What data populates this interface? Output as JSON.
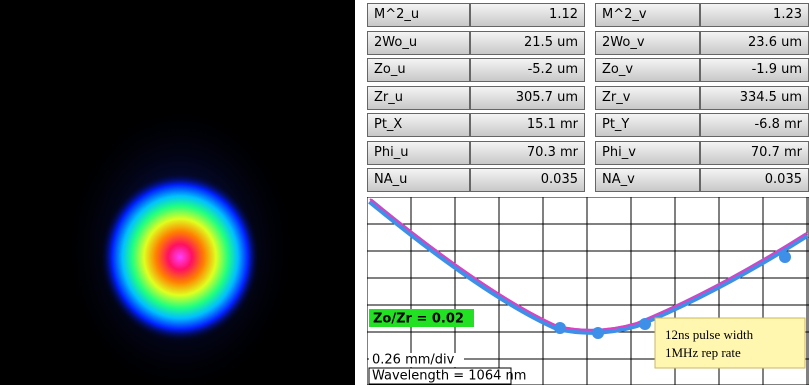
{
  "table": {
    "rows": [
      [
        "M^2_u",
        "1.12",
        "M^2_v",
        "1.23"
      ],
      [
        "2Wo_u",
        "21.5 um",
        "2Wo_v",
        "23.6 um"
      ],
      [
        "Zo_u",
        "-5.2 um",
        "Zo_v",
        "-1.9 um"
      ],
      [
        "Zr_u",
        "305.7 um",
        "Zr_v",
        "334.5 um"
      ],
      [
        "Pt_X",
        "15.1 mr",
        "Pt_Y",
        "-6.8 mr"
      ],
      [
        "Phi_u",
        "70.3 mr",
        "Phi_v",
        "70.7 mr"
      ],
      [
        "NA_u",
        "0.035",
        "NA_v",
        "0.035"
      ]
    ]
  },
  "plot": {
    "ratio_label": "Zo/Zr = 0.02",
    "scale_label": "0.26 mm/div",
    "wavelength_label": "Wavelength = 1064 nm"
  },
  "note": {
    "lines": [
      "12ns pulse width",
      "1MHz rep rate"
    ]
  }
}
